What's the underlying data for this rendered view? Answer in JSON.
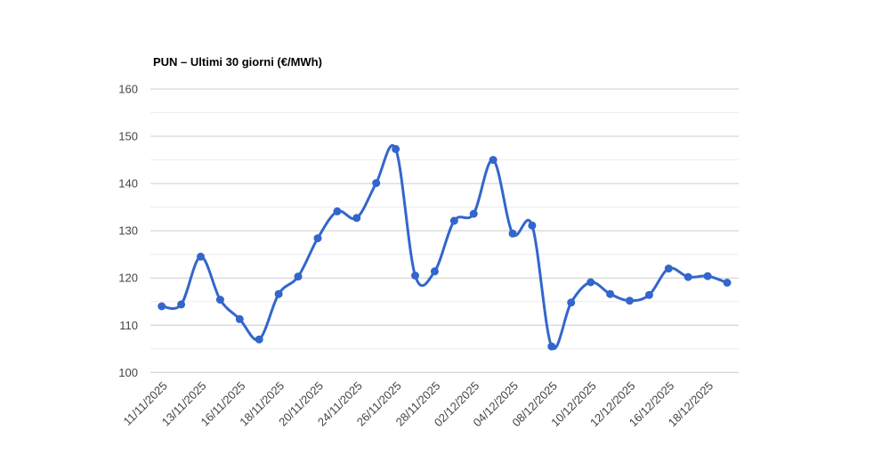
{
  "page": {
    "background_color": "#ffffff"
  },
  "chart_data": {
    "type": "line",
    "title": "PUN – Ultimi 30 giorni (€/MWh)",
    "legend": "none",
    "grid": "on",
    "smooth": true,
    "x_tick_labels": [
      "11/11/2025",
      "13/11/2025",
      "16/11/2025",
      "18/11/2025",
      "20/11/2025",
      "24/11/2025",
      "26/11/2025",
      "28/11/2025",
      "02/12/2025",
      "04/12/2025",
      "08/12/2025",
      "10/12/2025",
      "12/12/2025",
      "16/12/2025",
      "18/12/2025"
    ],
    "x_tick_step": 2,
    "values": [
      114.0,
      114.4,
      124.5,
      115.4,
      111.3,
      107.0,
      116.6,
      120.3,
      128.4,
      134.1,
      132.7,
      140.1,
      147.3,
      120.5,
      121.4,
      132.1,
      133.6,
      145.0,
      129.4,
      131.1,
      105.5,
      114.8,
      119.1,
      116.6,
      115.2,
      116.4,
      122.0,
      120.2,
      120.4,
      119.0
    ],
    "ylim": [
      100,
      160
    ],
    "y_major_ticks": [
      100,
      110,
      120,
      130,
      140,
      150,
      160
    ],
    "y_minor_ticks": [
      105,
      115,
      125,
      135,
      145,
      155
    ],
    "colors": {
      "series": "#3366cc",
      "grid_major": "#cccccc",
      "grid_minor": "#ebebeb",
      "axis_text": "#444444",
      "title_text": "#000000"
    }
  }
}
